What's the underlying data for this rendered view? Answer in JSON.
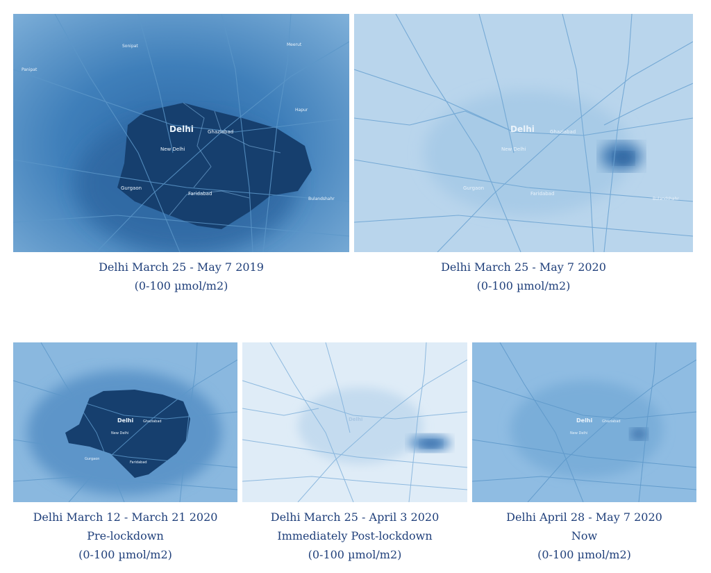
{
  "panels": [
    {
      "id": "p1",
      "captions": [
        "Delhi March 25 - May 7 2019",
        "(0-100 µmol/m2)"
      ],
      "labels": {
        "city": "Delhi",
        "sub1": "New Delhi",
        "sub2": "Ghaziabad",
        "sub3": "Gurgaon",
        "sub4": "Faridabad",
        "edge1": "Bulandshahr",
        "edge2": "Sonipat",
        "edge3": "Meerut",
        "edge4": "Panipat",
        "edge5": "Hapur"
      },
      "no2_intensity": "high"
    },
    {
      "id": "p2",
      "captions": [
        "Delhi March 25 - May 7 2020",
        "(0-100 µmol/m2)"
      ],
      "labels": {
        "city": "Delhi",
        "sub1": "New Delhi",
        "sub2": "Ghaziabad",
        "sub3": "Gurgaon",
        "sub4": "Faridabad",
        "edge1": "Bulandshahr"
      },
      "no2_intensity": "low"
    },
    {
      "id": "p3",
      "captions": [
        "Delhi March 12 - March 21 2020",
        "Pre-lockdown",
        "(0-100 µmol/m2)"
      ],
      "labels": {
        "city": "Delhi",
        "sub1": "New Delhi",
        "sub2": "Ghaziabad",
        "sub3": "Gurgaon",
        "sub4": "Faridabad"
      },
      "no2_intensity": "high"
    },
    {
      "id": "p4",
      "captions": [
        "Delhi March 25 - April 3 2020",
        "Immediately Post-lockdown",
        "(0-100 µmol/m2)"
      ],
      "labels": {
        "city": "Delhi"
      },
      "no2_intensity": "very low"
    },
    {
      "id": "p5",
      "captions": [
        "Delhi April 28 - May 7 2020",
        "Now",
        "(0-100 µmol/m2)"
      ],
      "labels": {
        "city": "Delhi",
        "sub1": "New Delhi",
        "sub2": "Ghaziabad"
      },
      "no2_intensity": "low"
    }
  ],
  "colors": {
    "hotspot": "#16406f",
    "mid": "#2c6aa8",
    "light": "#c3dbee",
    "road": "#5c97c9",
    "caption": "#1f3f7a"
  }
}
